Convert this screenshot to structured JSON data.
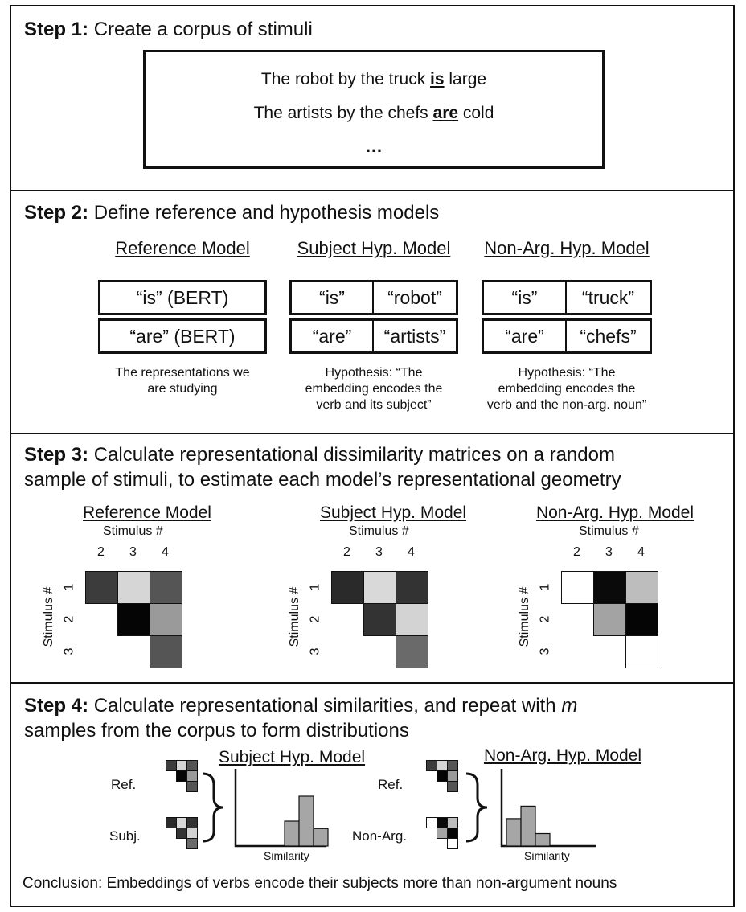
{
  "step1": {
    "label": "Step 1:",
    "text": "Create a corpus of stimuli",
    "line1_pre": "The robot by the truck ",
    "line1_verb": "is",
    "line1_post": " large",
    "line2_pre": "The artists by the chefs ",
    "line2_verb": "are",
    "line2_post": " cold",
    "ellipsis": "…"
  },
  "step2": {
    "label": "Step 2:",
    "text": "Define reference and hypothesis models",
    "reference": {
      "title": "Reference Model",
      "row1": "“is” (BERT)",
      "row2": "“are” (BERT)",
      "note1": "The representations we",
      "note2": "are studying"
    },
    "subject": {
      "title": "Subject Hyp. Model",
      "r1a": "“is”",
      "r1b": "“robot”",
      "r2a": "“are”",
      "r2b": "“artists”",
      "note1": "Hypothesis: “The",
      "note2": "embedding encodes the",
      "note3": "verb and its subject”"
    },
    "nonarg": {
      "title": "Non-Arg. Hyp. Model",
      "r1a": "“is”",
      "r1b": "“truck”",
      "r2a": "“are”",
      "r2b": "“chefs”",
      "note1": "Hypothesis: “The",
      "note2": "embedding encodes the",
      "note3": "verb and the non-arg. noun”"
    }
  },
  "step3": {
    "label": "Step 3:",
    "text1": "Calculate representational dissimilarity matrices on a random",
    "text2": "sample of stimuli, to estimate each model’s representational geometry",
    "axis_label": "Stimulus #",
    "col_ticks": [
      "2",
      "3",
      "4"
    ],
    "row_ticks": [
      "1",
      "2",
      "3"
    ],
    "matrices": [
      {
        "title": "Reference Model",
        "cells": [
          [
            "#3c3c3c",
            "#d6d6d6",
            "#555555"
          ],
          [
            null,
            "#050505",
            "#9a9a9a"
          ],
          [
            null,
            null,
            "#555555"
          ]
        ]
      },
      {
        "title": "Subject Hyp. Model",
        "cells": [
          [
            "#2a2a2a",
            "#d9d9d9",
            "#333333"
          ],
          [
            null,
            "#333333",
            "#d3d3d3"
          ],
          [
            null,
            null,
            "#6a6a6a"
          ]
        ]
      },
      {
        "title": "Non-Arg. Hyp. Model",
        "cells": [
          [
            "#ffffff",
            "#0a0a0a",
            "#bdbdbd"
          ],
          [
            null,
            "#a3a3a3",
            "#050505"
          ],
          [
            null,
            null,
            "#ffffff"
          ]
        ]
      }
    ]
  },
  "step4": {
    "label": "Step 4:",
    "text1a": "Calculate representational similarities, and repeat with ",
    "text1m": "m",
    "text2": "samples from the corpus to form distributions",
    "subject_title": "Subject Hyp. Model",
    "nonarg_title": "Non-Arg. Hyp. Model",
    "ref_label": "Ref.",
    "subj_label": "Subj.",
    "nonarg_label": "Non-Arg.",
    "xlabel": "Similarity",
    "hist_subject": [
      0.5,
      1.0,
      0.35
    ],
    "hist_nonarg": [
      0.55,
      0.8,
      0.25
    ],
    "conclusion": "Conclusion: Embeddings of verbs encode their subjects more than non-argument nouns"
  }
}
